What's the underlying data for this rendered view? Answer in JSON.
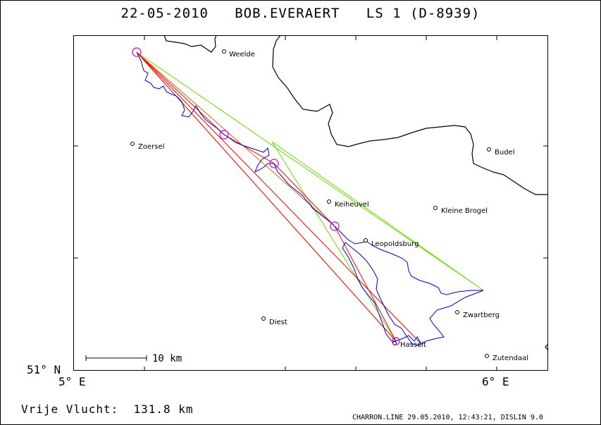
{
  "title": "22-05-2010   BOB.EVERAERT   LS 1 (D-8939)",
  "axes": {
    "lat_label": "51° N",
    "lon_left_label": "5° E",
    "lon_right_label": "6° E"
  },
  "scale_bar": {
    "label": "10 km"
  },
  "cities": [
    {
      "name": "Weelde"
    },
    {
      "name": "Zoersel"
    },
    {
      "name": "Budel"
    },
    {
      "name": "Keiheuvel"
    },
    {
      "name": "Kleine Brogel"
    },
    {
      "name": "Leopoldsburg"
    },
    {
      "name": "Zwartberg"
    },
    {
      "name": "Diest"
    },
    {
      "name": "Hasselt"
    },
    {
      "name": "Zutendaal"
    }
  ],
  "footer": {
    "flight": "Vrije Vlucht:  131.8 km",
    "software": "CHARRON.LINE 29.05.2010, 12:43:21, DISLIN 9.0"
  },
  "colors": {
    "track": "#0000cc",
    "task_line": "#ff0000",
    "triangle": "#66dd00",
    "turnpoint": "#cc00cc",
    "border": "#000000"
  }
}
